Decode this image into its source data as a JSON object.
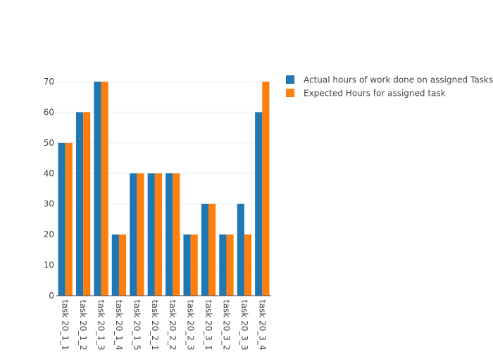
{
  "chart_data": {
    "type": "bar",
    "categories": [
      "task 20_1_1",
      "task 20_1_2",
      "task 20_1_3",
      "task 20_1_4",
      "task 20_1_5",
      "task 20_2_1",
      "task 20_2_2",
      "task 20_2_3",
      "task 20_3_1",
      "task 20_3_2",
      "task 20_3_3",
      "task 20_3_4"
    ],
    "series": [
      {
        "name": "Actual hours of work done on assigned Tasks",
        "color": "#1f77b4",
        "values": [
          50,
          60,
          70,
          20,
          40,
          40,
          40,
          20,
          30,
          20,
          30,
          60
        ]
      },
      {
        "name": "Expected Hours for assigned task",
        "color": "#ff7f0e",
        "values": [
          50,
          60,
          70,
          20,
          40,
          40,
          40,
          20,
          30,
          20,
          20,
          70
        ]
      }
    ],
    "yticks": [
      0,
      10,
      20,
      30,
      40,
      50,
      60,
      70
    ],
    "ylim": [
      0,
      70
    ],
    "grid": true,
    "legend_position": "top-right",
    "barmode": "group"
  }
}
